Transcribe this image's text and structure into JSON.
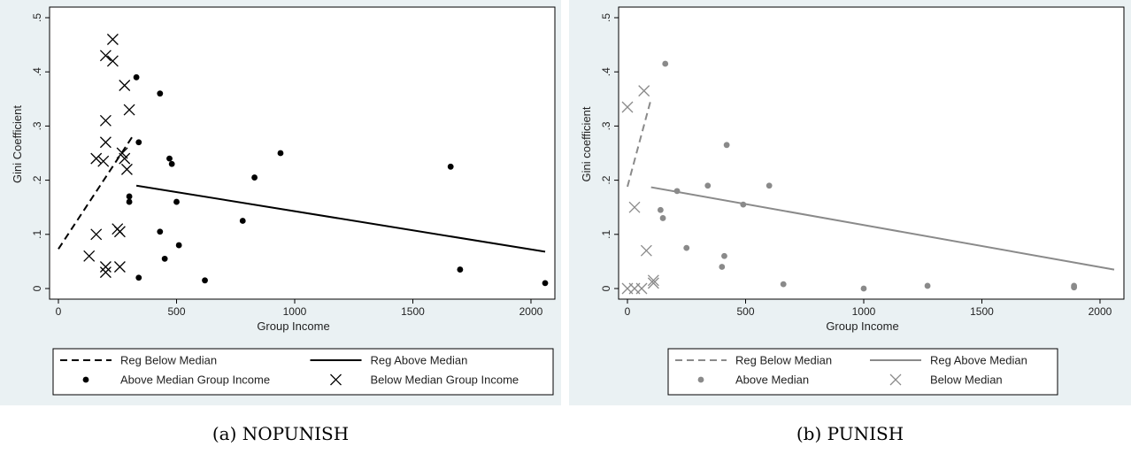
{
  "chart_data": [
    {
      "type": "scatter",
      "caption": "(a) NOPUNISH",
      "xlabel": "Group Income",
      "ylabel": "Gini Coefficient",
      "xlim": [
        0,
        2060
      ],
      "ylim": [
        0,
        0.5
      ],
      "xticks": [
        0,
        500,
        1000,
        1500,
        2000
      ],
      "xtick_labels": [
        "0",
        "500",
        "1000",
        "1500",
        "2000"
      ],
      "yticks": [
        0,
        0.1,
        0.2,
        0.3,
        0.4,
        0.5
      ],
      "ytick_labels": [
        "0",
        ".1",
        ".2",
        ".3",
        ".4",
        ".5"
      ],
      "grid": false,
      "legend_position": "bottom",
      "color": "#000000",
      "legend": [
        {
          "label": "Reg Below Median",
          "kind": "dash"
        },
        {
          "label": "Reg Above Median",
          "kind": "solid"
        },
        {
          "label": "Above Median Group Income",
          "kind": "dot"
        },
        {
          "label": "Below Median Group Income",
          "kind": "cross"
        }
      ],
      "series": [
        {
          "name": "Above Median Group Income",
          "marker": "dot",
          "points": [
            [
              330,
              0.39
            ],
            [
              430,
              0.36
            ],
            [
              340,
              0.27
            ],
            [
              470,
              0.24
            ],
            [
              480,
              0.23
            ],
            [
              300,
              0.17
            ],
            [
              300,
              0.16
            ],
            [
              500,
              0.16
            ],
            [
              430,
              0.105
            ],
            [
              450,
              0.055
            ],
            [
              510,
              0.08
            ],
            [
              340,
              0.02
            ],
            [
              620,
              0.015
            ],
            [
              780,
              0.125
            ],
            [
              830,
              0.205
            ],
            [
              940,
              0.25
            ],
            [
              1660,
              0.225
            ],
            [
              1700,
              0.035
            ],
            [
              2060,
              0.01
            ]
          ]
        },
        {
          "name": "Below Median Group Income",
          "marker": "cross",
          "points": [
            [
              230,
              0.46
            ],
            [
              200,
              0.43
            ],
            [
              230,
              0.42
            ],
            [
              280,
              0.375
            ],
            [
              300,
              0.33
            ],
            [
              200,
              0.31
            ],
            [
              200,
              0.27
            ],
            [
              270,
              0.25
            ],
            [
              160,
              0.24
            ],
            [
              190,
              0.235
            ],
            [
              280,
              0.24
            ],
            [
              290,
              0.22
            ],
            [
              250,
              0.11
            ],
            [
              260,
              0.105
            ],
            [
              160,
              0.1
            ],
            [
              130,
              0.06
            ],
            [
              260,
              0.04
            ],
            [
              200,
              0.04
            ],
            [
              200,
              0.03
            ]
          ]
        },
        {
          "name": "Reg Below Median",
          "line": "dash",
          "points": [
            [
              0,
              0.073
            ],
            [
              320,
              0.285
            ]
          ]
        },
        {
          "name": "Reg Above Median",
          "line": "solid",
          "points": [
            [
              330,
              0.19
            ],
            [
              2060,
              0.068
            ]
          ]
        }
      ]
    },
    {
      "type": "scatter",
      "caption": "(b) PUNISH",
      "xlabel": "Group Income",
      "ylabel": "Gini coefficient",
      "xlim": [
        0,
        2060
      ],
      "ylim": [
        0,
        0.5
      ],
      "xticks": [
        0,
        500,
        1000,
        1500,
        2000
      ],
      "xtick_labels": [
        "0",
        "500",
        "1000",
        "1500",
        "2000"
      ],
      "yticks": [
        0,
        0.1,
        0.2,
        0.3,
        0.4,
        0.5
      ],
      "ytick_labels": [
        "0",
        ".1",
        ".2",
        ".3",
        ".4",
        ".5"
      ],
      "grid": false,
      "legend_position": "bottom",
      "color": "#8a8a8a",
      "legend": [
        {
          "label": "Reg Below Median",
          "kind": "dash"
        },
        {
          "label": "Reg Above Median",
          "kind": "solid"
        },
        {
          "label": "Above Median",
          "kind": "dot"
        },
        {
          "label": "Below Median",
          "kind": "cross"
        }
      ],
      "series": [
        {
          "name": "Above Median",
          "marker": "dot",
          "points": [
            [
              160,
              0.415
            ],
            [
              420,
              0.265
            ],
            [
              340,
              0.19
            ],
            [
              600,
              0.19
            ],
            [
              210,
              0.18
            ],
            [
              490,
              0.155
            ],
            [
              140,
              0.145
            ],
            [
              150,
              0.13
            ],
            [
              250,
              0.075
            ],
            [
              410,
              0.06
            ],
            [
              400,
              0.04
            ],
            [
              660,
              0.008
            ],
            [
              1000,
              0.0
            ],
            [
              1270,
              0.005
            ],
            [
              1890,
              0.005
            ],
            [
              1890,
              0.002
            ]
          ]
        },
        {
          "name": "Below Median",
          "marker": "cross",
          "points": [
            [
              70,
              0.365
            ],
            [
              0,
              0.335
            ],
            [
              30,
              0.15
            ],
            [
              80,
              0.07
            ],
            [
              110,
              0.015
            ],
            [
              110,
              0.01
            ],
            [
              0,
              0.0
            ],
            [
              30,
              0.0
            ],
            [
              60,
              0.0
            ]
          ]
        },
        {
          "name": "Reg Below Median",
          "line": "dash",
          "points": [
            [
              0,
              0.188
            ],
            [
              100,
              0.35
            ]
          ]
        },
        {
          "name": "Reg Above Median",
          "line": "solid",
          "points": [
            [
              100,
              0.187
            ],
            [
              2060,
              0.035
            ]
          ]
        }
      ]
    }
  ]
}
